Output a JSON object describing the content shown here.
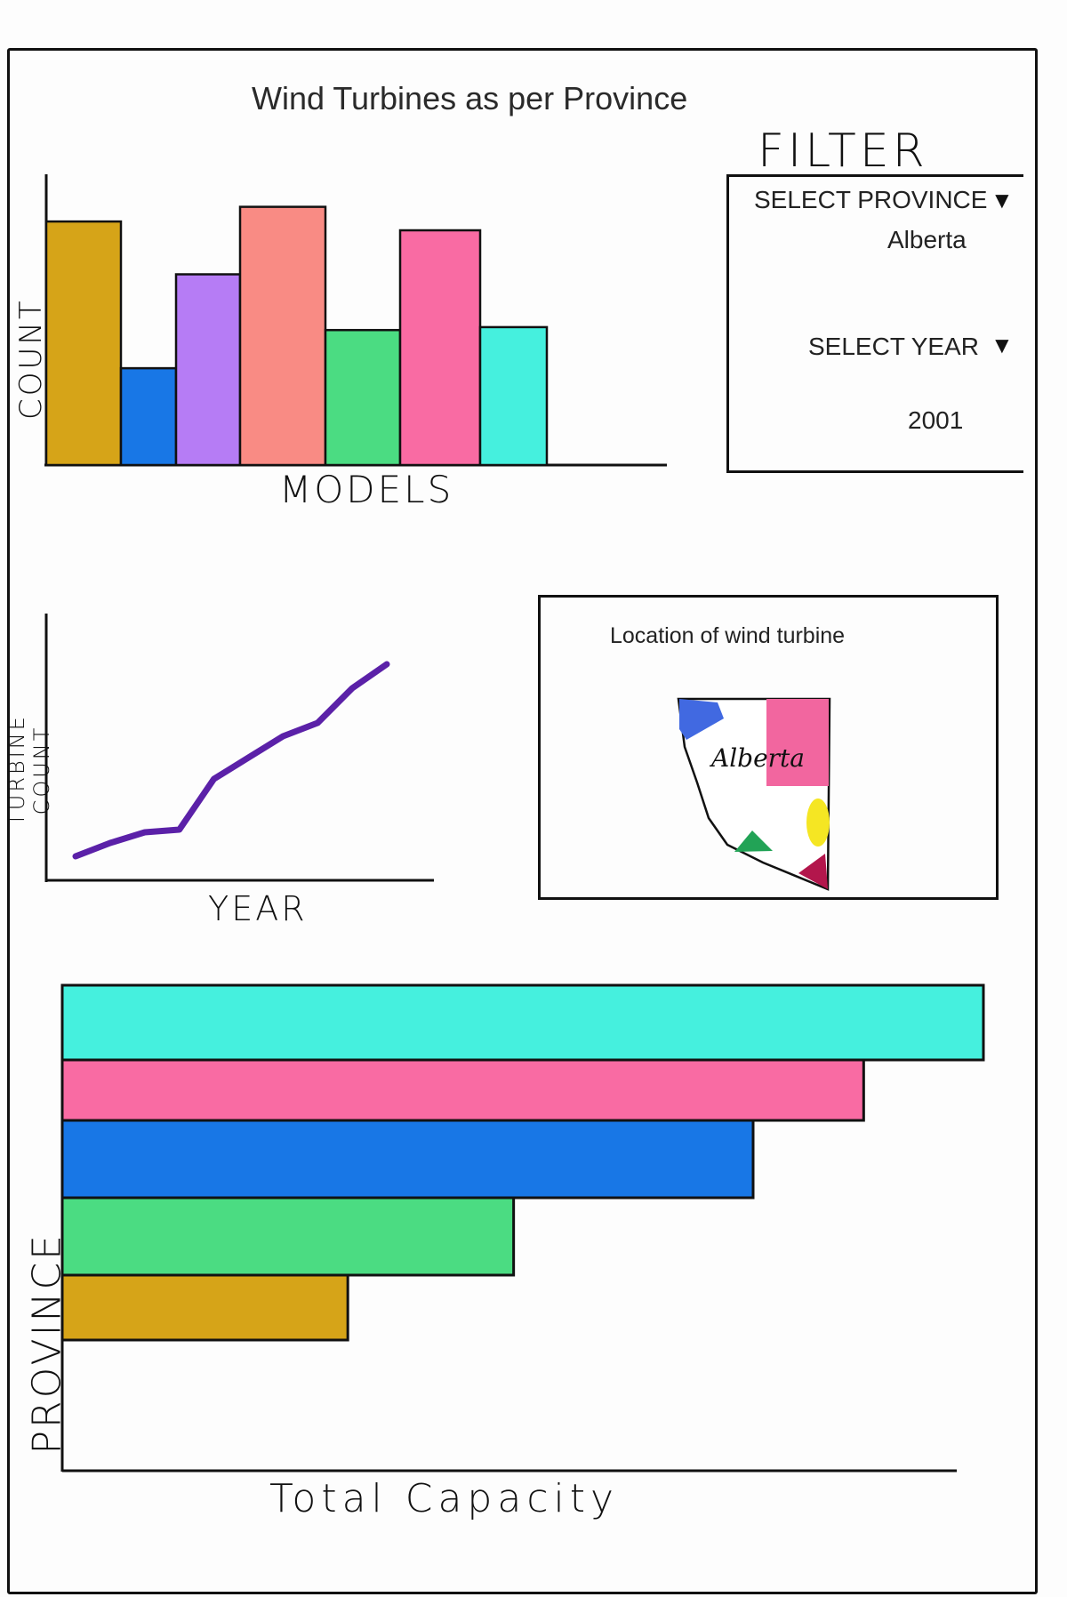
{
  "page": {
    "title": "Wind Turbines as per Province"
  },
  "filter": {
    "heading": "FILTER",
    "province_label": "SELECT PROVINCE",
    "province_value": "Alberta",
    "year_label": "SELECT YEAR",
    "year_value": "2001",
    "dropdown_icon": "triangle-down-icon"
  },
  "map": {
    "title": "Location of wind turbine",
    "region_label": "Alberta",
    "marker_colors": [
      "#4169e1",
      "#f2669f",
      "#f5e623",
      "#22a356",
      "#b3164c"
    ]
  },
  "chart_data": [
    {
      "type": "bar",
      "xlabel": "MODELS",
      "ylabel": "COUNT",
      "categories": [
        "",
        "",
        "",
        "",
        "",
        "",
        ""
      ],
      "values": [
        8.3,
        3.3,
        6.5,
        8.8,
        4.6,
        8.0,
        4.7
      ],
      "colors": [
        "#d6a418",
        "#1877e6",
        "#b67cf5",
        "#f98b84",
        "#4bdc82",
        "#f96ba3",
        "#45f0de"
      ],
      "ylim": [
        0,
        10
      ]
    },
    {
      "type": "line",
      "xlabel": "YEAR",
      "ylabel": "TURBINE COUNT",
      "color": "#5b21a8",
      "x": [
        0,
        1,
        2,
        3,
        4,
        5,
        6,
        7,
        8,
        9
      ],
      "y": [
        0.9,
        1.4,
        1.8,
        1.9,
        3.8,
        4.6,
        5.4,
        5.9,
        7.2,
        8.1
      ],
      "ylim": [
        0,
        10
      ]
    },
    {
      "type": "bar",
      "orientation": "horizontal",
      "xlabel": "Total Capacity",
      "ylabel": "PROVINCE",
      "categories": [
        "",
        "",
        "",
        "",
        ""
      ],
      "values": [
        10.0,
        8.7,
        7.5,
        4.9,
        3.1
      ],
      "colors": [
        "#45f0de",
        "#f96ba3",
        "#1877e6",
        "#4bdc82",
        "#d6a418"
      ],
      "xlim": [
        0,
        10
      ]
    }
  ]
}
